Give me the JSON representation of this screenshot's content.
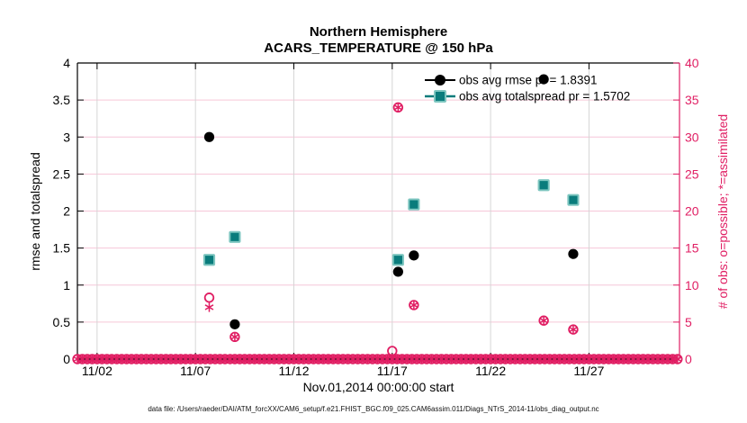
{
  "title": {
    "line1": "Northern Hemisphere",
    "line2": "ACARS_TEMPERATURE @ 150 hPa"
  },
  "axes": {
    "left": {
      "label": "rmse and totalspread",
      "ticks": [
        0,
        0.5,
        1,
        1.5,
        2,
        2.5,
        3,
        3.5,
        4
      ],
      "tick_labels": [
        "0",
        "0.5",
        "1",
        "1.5",
        "2",
        "2.5",
        "3",
        "3.5",
        "4"
      ],
      "range": [
        0,
        4
      ],
      "color": "#000000"
    },
    "right": {
      "label": "# of obs: o=possible; *=assimilated",
      "ticks": [
        0,
        5,
        10,
        15,
        20,
        25,
        30,
        35,
        40
      ],
      "tick_labels": [
        "0",
        "5",
        "10",
        "15",
        "20",
        "25",
        "30",
        "35",
        "40"
      ],
      "range": [
        0,
        40
      ],
      "color": "#e01e63"
    },
    "x": {
      "label": "Nov.01,2014 00:00:00 start",
      "tick_days": [
        1,
        6,
        11,
        16,
        21,
        26
      ],
      "tick_labels": [
        "11/02",
        "11/07",
        "11/12",
        "11/17",
        "11/22",
        "11/27"
      ]
    }
  },
  "legend": {
    "items": [
      {
        "label": "obs avg rmse pr = 1.8391",
        "marker": "filled-circle",
        "color": "#000000"
      },
      {
        "label": "obs avg totalspread pr = 1.5702",
        "marker": "filled-square",
        "color": "#0a7c7c"
      }
    ]
  },
  "footer": "data file: /Users/raeder/DAI/ATM_forcXX/CAM6_setup/f.e21.FHIST_BGC.f09_025.CAM6assim.011/Diags_NTrS_2014-11/obs_diag_output.nc",
  "colors": {
    "accent_pink": "#e01e63",
    "teal_fill": "#0a7c7c",
    "teal_edge": "#7ec6c0",
    "grid_h": "#f6c6d8",
    "grid_v": "#d6d6d6",
    "black": "#000000"
  },
  "chart_data": {
    "type": "scatter",
    "title": "Northern Hemisphere",
    "subtitle": "ACARS_TEMPERATURE @ 150 hPa",
    "xlabel": "Nov.01,2014 00:00:00 start",
    "ylabel_left": "rmse and totalspread",
    "ylabel_right": "# of obs: o=possible; *=assimilated",
    "x_unit": "days since Nov.01,2014 00:00:00",
    "xlim_days": [
      0,
      30.6
    ],
    "ylim_left": [
      0,
      4
    ],
    "ylim_right": [
      0,
      40
    ],
    "grid": true,
    "legend_position": "upper-right, no box",
    "series": [
      {
        "id": "rmse",
        "name": "obs avg rmse pr = 1.8391",
        "axis": "left",
        "marker": "filled-circle",
        "color": "#000000",
        "points": [
          [
            6.7,
            3.0
          ],
          [
            8.0,
            0.47
          ],
          [
            16.3,
            1.18
          ],
          [
            17.1,
            1.4
          ],
          [
            23.7,
            3.78
          ],
          [
            25.2,
            1.42
          ]
        ]
      },
      {
        "id": "totalspread",
        "name": "obs avg totalspread pr = 1.5702",
        "axis": "left",
        "marker": "filled-square",
        "color": "#0a7c7c",
        "points": [
          [
            6.7,
            1.34
          ],
          [
            8.0,
            1.65
          ],
          [
            16.3,
            1.34
          ],
          [
            17.1,
            2.09
          ],
          [
            23.7,
            2.35
          ],
          [
            25.2,
            2.15
          ]
        ]
      },
      {
        "id": "possible",
        "name": "# of obs possible (o)",
        "axis": "right",
        "marker": "open-circle",
        "color": "#e01e63",
        "points": [
          [
            6.7,
            8.3
          ],
          [
            8.0,
            3
          ],
          [
            16.0,
            1.1
          ],
          [
            16.3,
            34
          ],
          [
            17.1,
            7.3
          ],
          [
            23.7,
            5.2
          ],
          [
            25.2,
            4
          ]
        ]
      },
      {
        "id": "assimilated",
        "name": "# of obs assimilated (*)",
        "axis": "right",
        "marker": "asterisk",
        "color": "#e01e63",
        "points": [
          [
            6.7,
            7
          ],
          [
            8.0,
            3
          ],
          [
            16.3,
            34
          ],
          [
            17.1,
            7.3
          ],
          [
            23.7,
            5.2
          ],
          [
            25.2,
            4
          ]
        ]
      }
    ],
    "zero_row": {
      "axis": "right",
      "value": 0,
      "start_day": 0,
      "end_day": 30.6,
      "step_day": 0.25,
      "markers": [
        "open-circle",
        "asterisk"
      ],
      "color": "#e01e63",
      "note": "dense continuous band of overlapping o and * markers at 0 along the entire x-axis"
    }
  }
}
